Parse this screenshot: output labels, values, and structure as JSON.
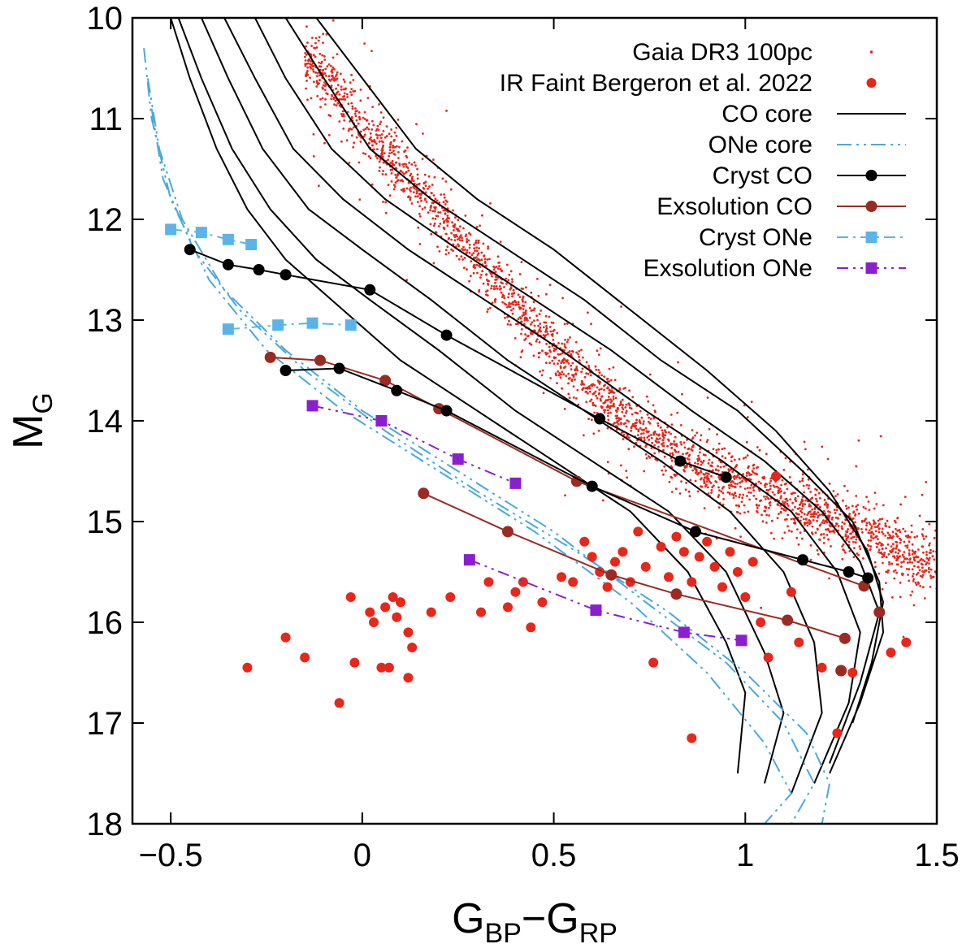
{
  "colors": {
    "gaia": "#e8261a",
    "ir_faint": "#e8261a",
    "co": "#000000",
    "one": "#4aa8dc",
    "cryst_co": "#000000",
    "exsol_co": "#9b2a22",
    "cryst_one": "#5ab4e8",
    "exsol_one": "#8a1fd0"
  },
  "chart_data": {
    "type": "scatter",
    "title": "",
    "xlabel": {
      "main": "G",
      "sub1": "BP",
      "dash": "−G",
      "sub2": "RP"
    },
    "ylabel": {
      "main": "M",
      "sub": "G"
    },
    "xlim": [
      -0.6,
      1.5
    ],
    "ylim": [
      18,
      10
    ],
    "xticks": [
      -0.5,
      0,
      0.5,
      1,
      1.5
    ],
    "xtick_labels": [
      "−0.5",
      "0",
      "0.5",
      "1",
      "1.5"
    ],
    "yticks": [
      10,
      11,
      12,
      13,
      14,
      15,
      16,
      17,
      18
    ],
    "ytick_labels": [
      "10",
      "11",
      "12",
      "13",
      "14",
      "15",
      "16",
      "17",
      "18"
    ],
    "legend_position": "top-right",
    "legend": [
      {
        "label": "Gaia DR3 100pc",
        "style": "gaia"
      },
      {
        "label": "IR Faint Bergeron et al. 2022",
        "style": "irfaint"
      },
      {
        "label": "CO core",
        "style": "co"
      },
      {
        "label": "ONe core",
        "style": "one"
      },
      {
        "label": "Cryst CO",
        "style": "cryst_co"
      },
      {
        "label": "Exsolution CO",
        "style": "exsol_co"
      },
      {
        "label": "Cryst ONe",
        "style": "cryst_one"
      },
      {
        "label": "Exsolution ONe",
        "style": "exsol_one"
      }
    ],
    "gaia_sequence": [
      [
        -0.12,
        10.5
      ],
      [
        0.1,
        11.5
      ],
      [
        0.3,
        12.4
      ],
      [
        0.5,
        13.3
      ],
      [
        0.7,
        14.0
      ],
      [
        0.9,
        14.5
      ],
      [
        1.1,
        14.8
      ],
      [
        1.3,
        15.1
      ],
      [
        1.45,
        15.4
      ]
    ],
    "ir_faint": [
      [
        -0.3,
        16.45
      ],
      [
        -0.2,
        16.15
      ],
      [
        -0.15,
        16.35
      ],
      [
        -0.06,
        16.8
      ],
      [
        -0.03,
        15.75
      ],
      [
        -0.02,
        16.4
      ],
      [
        0.02,
        15.9
      ],
      [
        0.03,
        16.0
      ],
      [
        0.05,
        16.45
      ],
      [
        0.06,
        15.85
      ],
      [
        0.07,
        16.45
      ],
      [
        0.08,
        15.75
      ],
      [
        0.09,
        15.95
      ],
      [
        0.1,
        15.8
      ],
      [
        0.12,
        16.1
      ],
      [
        0.12,
        16.55
      ],
      [
        0.13,
        16.25
      ],
      [
        0.18,
        15.9
      ],
      [
        0.23,
        15.75
      ],
      [
        0.31,
        15.9
      ],
      [
        0.33,
        15.6
      ],
      [
        0.38,
        15.85
      ],
      [
        0.4,
        15.7
      ],
      [
        0.42,
        15.6
      ],
      [
        0.44,
        16.05
      ],
      [
        0.47,
        15.8
      ],
      [
        0.52,
        15.55
      ],
      [
        0.55,
        15.6
      ],
      [
        0.58,
        15.2
      ],
      [
        0.6,
        15.35
      ],
      [
        0.62,
        15.5
      ],
      [
        0.64,
        15.65
      ],
      [
        0.66,
        15.4
      ],
      [
        0.68,
        15.3
      ],
      [
        0.7,
        15.6
      ],
      [
        0.72,
        15.1
      ],
      [
        0.74,
        15.45
      ],
      [
        0.76,
        16.4
      ],
      [
        0.78,
        15.25
      ],
      [
        0.8,
        15.55
      ],
      [
        0.82,
        15.15
      ],
      [
        0.84,
        15.3
      ],
      [
        0.86,
        15.6
      ],
      [
        0.88,
        15.35
      ],
      [
        0.9,
        15.2
      ],
      [
        0.92,
        15.45
      ],
      [
        0.94,
        15.65
      ],
      [
        0.96,
        15.3
      ],
      [
        0.98,
        15.5
      ],
      [
        1.0,
        15.75
      ],
      [
        1.02,
        15.4
      ],
      [
        1.04,
        16.0
      ],
      [
        1.06,
        16.35
      ],
      [
        1.08,
        14.55
      ],
      [
        1.12,
        15.7
      ],
      [
        1.14,
        16.2
      ],
      [
        1.2,
        16.45
      ],
      [
        1.24,
        17.1
      ],
      [
        1.28,
        16.5
      ],
      [
        0.86,
        17.15
      ],
      [
        1.38,
        16.3
      ],
      [
        1.42,
        16.2
      ]
    ],
    "co_tracks": [
      [
        [
          -0.5,
          10.0
        ],
        [
          -0.45,
          10.6
        ],
        [
          -0.38,
          11.3
        ],
        [
          -0.3,
          11.9
        ],
        [
          -0.2,
          12.4
        ],
        [
          -0.05,
          12.9
        ],
        [
          0.1,
          13.4
        ],
        [
          0.3,
          13.9
        ],
        [
          0.5,
          14.4
        ],
        [
          0.7,
          14.9
        ],
        [
          0.85,
          15.5
        ],
        [
          0.95,
          16.2
        ],
        [
          1.0,
          16.7
        ],
        [
          0.98,
          17.5
        ]
      ],
      [
        [
          -0.48,
          10.0
        ],
        [
          -0.42,
          10.6
        ],
        [
          -0.34,
          11.3
        ],
        [
          -0.24,
          11.9
        ],
        [
          -0.12,
          12.4
        ],
        [
          0.02,
          12.8
        ],
        [
          0.2,
          13.3
        ],
        [
          0.4,
          13.9
        ],
        [
          0.6,
          14.4
        ],
        [
          0.8,
          14.9
        ],
        [
          0.95,
          15.5
        ],
        [
          1.05,
          16.3
        ],
        [
          1.1,
          16.9
        ],
        [
          1.05,
          17.6
        ]
      ],
      [
        [
          -0.42,
          10.0
        ],
        [
          -0.35,
          10.6
        ],
        [
          -0.26,
          11.3
        ],
        [
          -0.14,
          11.9
        ],
        [
          0.0,
          12.3
        ],
        [
          0.18,
          12.8
        ],
        [
          0.38,
          13.4
        ],
        [
          0.58,
          13.9
        ],
        [
          0.78,
          14.4
        ],
        [
          0.96,
          14.9
        ],
        [
          1.1,
          15.5
        ],
        [
          1.18,
          16.2
        ],
        [
          1.2,
          16.9
        ],
        [
          1.12,
          17.7
        ]
      ],
      [
        [
          -0.36,
          10.0
        ],
        [
          -0.28,
          10.6
        ],
        [
          -0.18,
          11.3
        ],
        [
          -0.05,
          11.8
        ],
        [
          0.12,
          12.3
        ],
        [
          0.32,
          12.8
        ],
        [
          0.52,
          13.3
        ],
        [
          0.74,
          13.9
        ],
        [
          0.94,
          14.4
        ],
        [
          1.12,
          14.9
        ],
        [
          1.24,
          15.5
        ],
        [
          1.3,
          16.1
        ],
        [
          1.27,
          16.8
        ],
        [
          1.18,
          17.6
        ]
      ],
      [
        [
          -0.28,
          10.0
        ],
        [
          -0.2,
          10.6
        ],
        [
          -0.08,
          11.3
        ],
        [
          0.06,
          11.8
        ],
        [
          0.25,
          12.3
        ],
        [
          0.45,
          12.8
        ],
        [
          0.65,
          13.3
        ],
        [
          0.86,
          13.9
        ],
        [
          1.05,
          14.4
        ],
        [
          1.2,
          14.9
        ],
        [
          1.3,
          15.4
        ],
        [
          1.35,
          15.9
        ],
        [
          1.3,
          16.6
        ],
        [
          1.22,
          17.4
        ]
      ],
      [
        [
          -0.2,
          10.0
        ],
        [
          -0.1,
          10.6
        ],
        [
          0.02,
          11.3
        ],
        [
          0.18,
          11.8
        ],
        [
          0.38,
          12.3
        ],
        [
          0.58,
          12.8
        ],
        [
          0.78,
          13.4
        ],
        [
          0.98,
          13.9
        ],
        [
          1.15,
          14.5
        ],
        [
          1.28,
          15.0
        ],
        [
          1.35,
          15.6
        ],
        [
          1.36,
          16.1
        ],
        [
          1.3,
          16.8
        ],
        [
          1.22,
          17.5
        ]
      ],
      [
        [
          -0.12,
          10.0
        ],
        [
          0.0,
          10.6
        ],
        [
          0.14,
          11.3
        ],
        [
          0.3,
          11.8
        ],
        [
          0.5,
          12.3
        ],
        [
          0.7,
          12.9
        ],
        [
          0.9,
          13.5
        ],
        [
          1.08,
          14.1
        ],
        [
          1.22,
          14.7
        ],
        [
          1.32,
          15.3
        ],
        [
          1.36,
          15.8
        ],
        [
          1.33,
          16.4
        ],
        [
          1.28,
          17.0
        ]
      ]
    ],
    "one_tracks": [
      [
        [
          -0.57,
          10.3
        ],
        [
          -0.55,
          11.0
        ],
        [
          -0.5,
          11.8
        ],
        [
          -0.4,
          12.6
        ],
        [
          -0.25,
          13.3
        ],
        [
          -0.05,
          13.9
        ],
        [
          0.2,
          14.5
        ],
        [
          0.45,
          15.1
        ],
        [
          0.7,
          15.8
        ],
        [
          0.9,
          16.5
        ],
        [
          1.05,
          17.2
        ],
        [
          1.12,
          17.7
        ],
        [
          1.05,
          18.0
        ]
      ],
      [
        [
          -0.56,
          10.6
        ],
        [
          -0.53,
          11.3
        ],
        [
          -0.47,
          12.0
        ],
        [
          -0.36,
          12.7
        ],
        [
          -0.2,
          13.3
        ],
        [
          0.0,
          13.9
        ],
        [
          0.25,
          14.5
        ],
        [
          0.5,
          15.1
        ],
        [
          0.74,
          15.8
        ],
        [
          0.95,
          16.4
        ],
        [
          1.1,
          17.0
        ],
        [
          1.18,
          17.6
        ],
        [
          1.12,
          18.0
        ]
      ],
      [
        [
          -0.55,
          10.9
        ],
        [
          -0.52,
          11.6
        ],
        [
          -0.44,
          12.3
        ],
        [
          -0.32,
          12.9
        ],
        [
          -0.15,
          13.5
        ],
        [
          0.06,
          14.1
        ],
        [
          0.3,
          14.7
        ],
        [
          0.56,
          15.3
        ],
        [
          0.8,
          15.9
        ],
        [
          1.0,
          16.5
        ],
        [
          1.16,
          17.1
        ],
        [
          1.22,
          17.6
        ],
        [
          1.2,
          18.0
        ]
      ]
    ],
    "cryst_co": [
      [
        [
          -0.45,
          12.3
        ],
        [
          -0.35,
          12.45
        ],
        [
          -0.27,
          12.5
        ],
        [
          -0.2,
          12.55
        ],
        [
          0.02,
          12.7
        ],
        [
          0.22,
          13.15
        ],
        [
          0.62,
          13.98
        ],
        [
          0.83,
          14.4
        ],
        [
          0.95,
          14.56
        ]
      ],
      [
        [
          -0.2,
          13.5
        ],
        [
          -0.06,
          13.48
        ],
        [
          0.09,
          13.7
        ],
        [
          0.22,
          13.9
        ],
        [
          0.6,
          14.65
        ],
        [
          0.87,
          15.1
        ],
        [
          1.15,
          15.38
        ],
        [
          1.27,
          15.5
        ],
        [
          1.32,
          15.56
        ]
      ]
    ],
    "exsol_co": [
      [
        [
          -0.24,
          13.37
        ],
        [
          -0.11,
          13.4
        ],
        [
          0.06,
          13.6
        ],
        [
          0.2,
          13.88
        ],
        [
          0.56,
          14.6
        ],
        [
          1.31,
          15.64
        ]
      ],
      [
        [
          0.16,
          14.72
        ],
        [
          0.38,
          15.1
        ],
        [
          0.65,
          15.53
        ],
        [
          0.82,
          15.72
        ],
        [
          1.11,
          15.98
        ],
        [
          1.26,
          16.16
        ]
      ]
    ],
    "exsol_co_extra": [
      [
        1.35,
        15.9
      ],
      [
        1.25,
        16.48
      ]
    ],
    "cryst_one": [
      [
        [
          -0.5,
          12.1
        ],
        [
          -0.42,
          12.13
        ],
        [
          -0.35,
          12.2
        ],
        [
          -0.29,
          12.25
        ]
      ],
      [
        [
          -0.35,
          13.09
        ],
        [
          -0.22,
          13.05
        ],
        [
          -0.13,
          13.03
        ],
        [
          -0.03,
          13.05
        ]
      ]
    ],
    "exsol_one": [
      [
        [
          -0.13,
          13.85
        ],
        [
          0.05,
          14.0
        ],
        [
          0.25,
          14.38
        ],
        [
          0.4,
          14.62
        ]
      ],
      [
        [
          0.28,
          15.38
        ],
        [
          0.61,
          15.88
        ],
        [
          0.84,
          16.1
        ],
        [
          0.99,
          16.18
        ]
      ]
    ]
  }
}
